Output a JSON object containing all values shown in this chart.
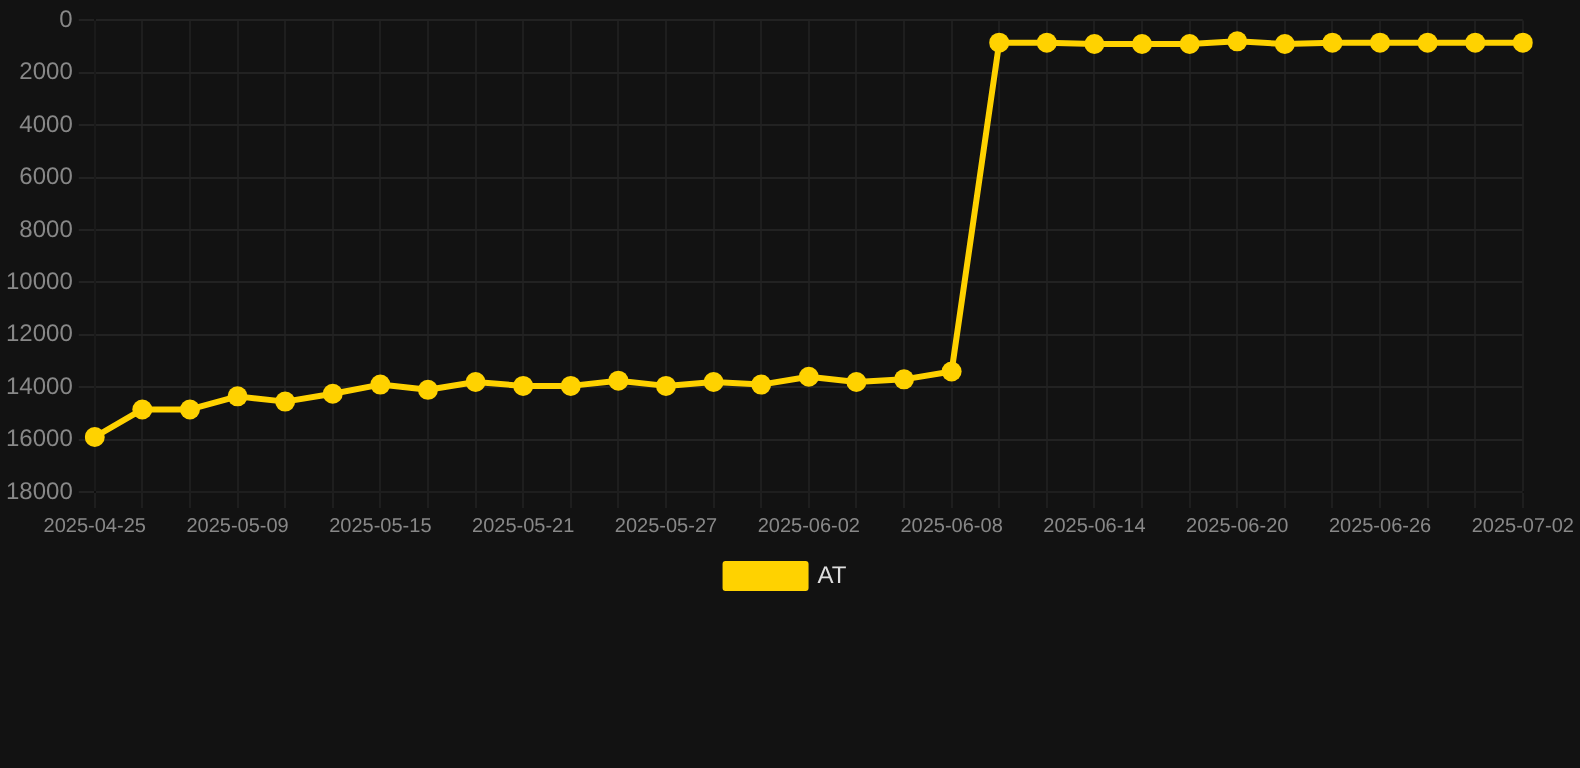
{
  "chart_data": {
    "type": "line",
    "categories": [
      "2025-04-25",
      null,
      null,
      "2025-05-09",
      null,
      null,
      "2025-05-15",
      null,
      null,
      "2025-05-21",
      null,
      null,
      "2025-05-27",
      null,
      null,
      "2025-06-02",
      null,
      null,
      "2025-06-08",
      null,
      null,
      "2025-06-14",
      null,
      null,
      "2025-06-20",
      null,
      null,
      "2025-06-26",
      null,
      null,
      "2025-07-02"
    ],
    "series": [
      {
        "name": "AT",
        "color": "#ffd200",
        "values": [
          15900,
          14850,
          14850,
          14350,
          14550,
          14250,
          13900,
          14100,
          13800,
          13950,
          13950,
          13750,
          13950,
          13800,
          13900,
          13600,
          13800,
          13700,
          13400,
          850,
          850,
          900,
          900,
          900,
          800,
          900,
          850,
          850,
          850,
          850,
          850
        ]
      }
    ],
    "ylim": [
      18000,
      0
    ],
    "yticks": [
      0,
      2000,
      4000,
      6000,
      8000,
      10000,
      12000,
      14000,
      16000,
      18000
    ],
    "grid": true,
    "legend": "bottom",
    "marker": "circle",
    "line_style": "solid"
  }
}
